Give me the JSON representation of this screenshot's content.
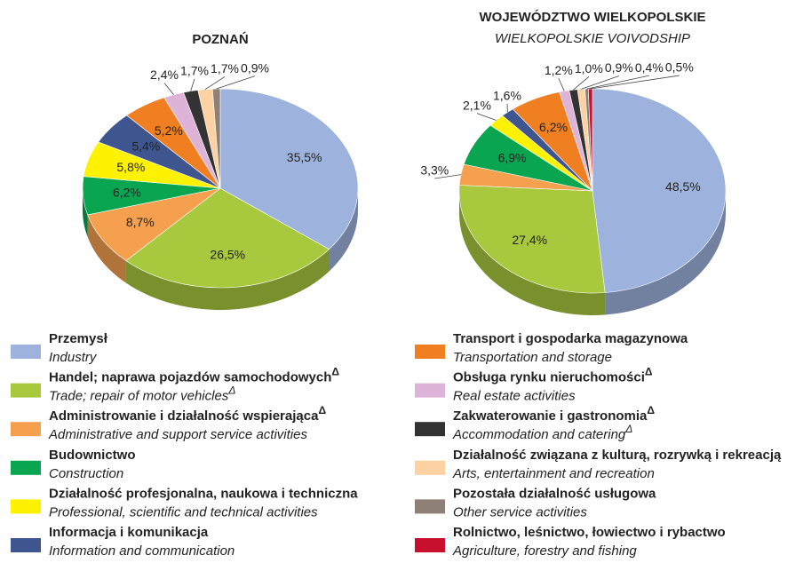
{
  "legend": [
    {
      "name": "Przemysł",
      "name_en": "Industry",
      "color": "#9db3dd"
    },
    {
      "name": "Handel; naprawa pojazdów samochodowych",
      "name_mark": "Δ",
      "name_en": "Trade; repair of motor vehicles",
      "name_en_mark": "Δ",
      "color": "#a8c83e"
    },
    {
      "name": "Administrowanie i działalność wspierająca",
      "name_mark": "Δ",
      "name_en": "Administrative and support service activities",
      "color": "#f5a04f"
    },
    {
      "name": "Budownictwo",
      "name_en": "Construction",
      "color": "#0aa550"
    },
    {
      "name": "Działalność profesjonalna, naukowa i techniczna",
      "name_en": "Professional, scientific and technical activities",
      "color": "#fff200"
    },
    {
      "name": "Informacja i komunikacja",
      "name_en": "Information and communication",
      "color": "#3f5590"
    },
    {
      "name": "Transport i gospodarka magazynowa",
      "name_en": "Transportation and storage",
      "color": "#f07f22"
    },
    {
      "name": "Obsługa rynku nieruchomości",
      "name_mark": "Δ",
      "name_en": "Real estate activities",
      "color": "#ddb4d8"
    },
    {
      "name": "Zakwaterowanie i gastronomia",
      "name_mark": "Δ",
      "name_en": "Accommodation and catering",
      "name_en_mark": "Δ",
      "color": "#333333"
    },
    {
      "name": "Działalność związana z kulturą, rozrywką i rekreacją",
      "name_en": "Arts, entertainment and recreation",
      "color": "#fdd2a2"
    },
    {
      "name": "Pozostała działalność usługowa",
      "name_en": "Other service activities",
      "color": "#8e7f77"
    },
    {
      "name": "Rolnictwo, leśnictwo, łowiectwo i rybactwo",
      "name_en": "Agriculture, forestry and fishing",
      "color": "#c8102e"
    }
  ],
  "chart_data": [
    {
      "type": "pie",
      "title": "POZNAŃ",
      "values": [
        35.5,
        26.5,
        8.7,
        6.2,
        5.8,
        5.4,
        5.2,
        2.4,
        1.7,
        1.7,
        0.9,
        null
      ],
      "value_labels": [
        "35,5%",
        "26,5%",
        "8,7%",
        "6,2%",
        "5,8%",
        "5,4%",
        "5,2%",
        "2,4%",
        "1,7%",
        "1,7%",
        "0,9%",
        null
      ]
    },
    {
      "type": "pie",
      "title": "WOJEWÓDZTWO WIELKOPOLSKIE",
      "subtitle": "WIELKOPOLSKIE VOIVODSHIP",
      "values": [
        48.5,
        27.4,
        3.3,
        6.9,
        2.1,
        1.6,
        6.2,
        1.2,
        1.0,
        0.9,
        0.4,
        0.5
      ],
      "value_labels": [
        "48,5%",
        "27,4%",
        "3,3%",
        "6,9%",
        "2,1%",
        "1,6%",
        "6,2%",
        "1,2%",
        "1,0%",
        "0,9%",
        "0,4%",
        "0,5%"
      ]
    }
  ]
}
